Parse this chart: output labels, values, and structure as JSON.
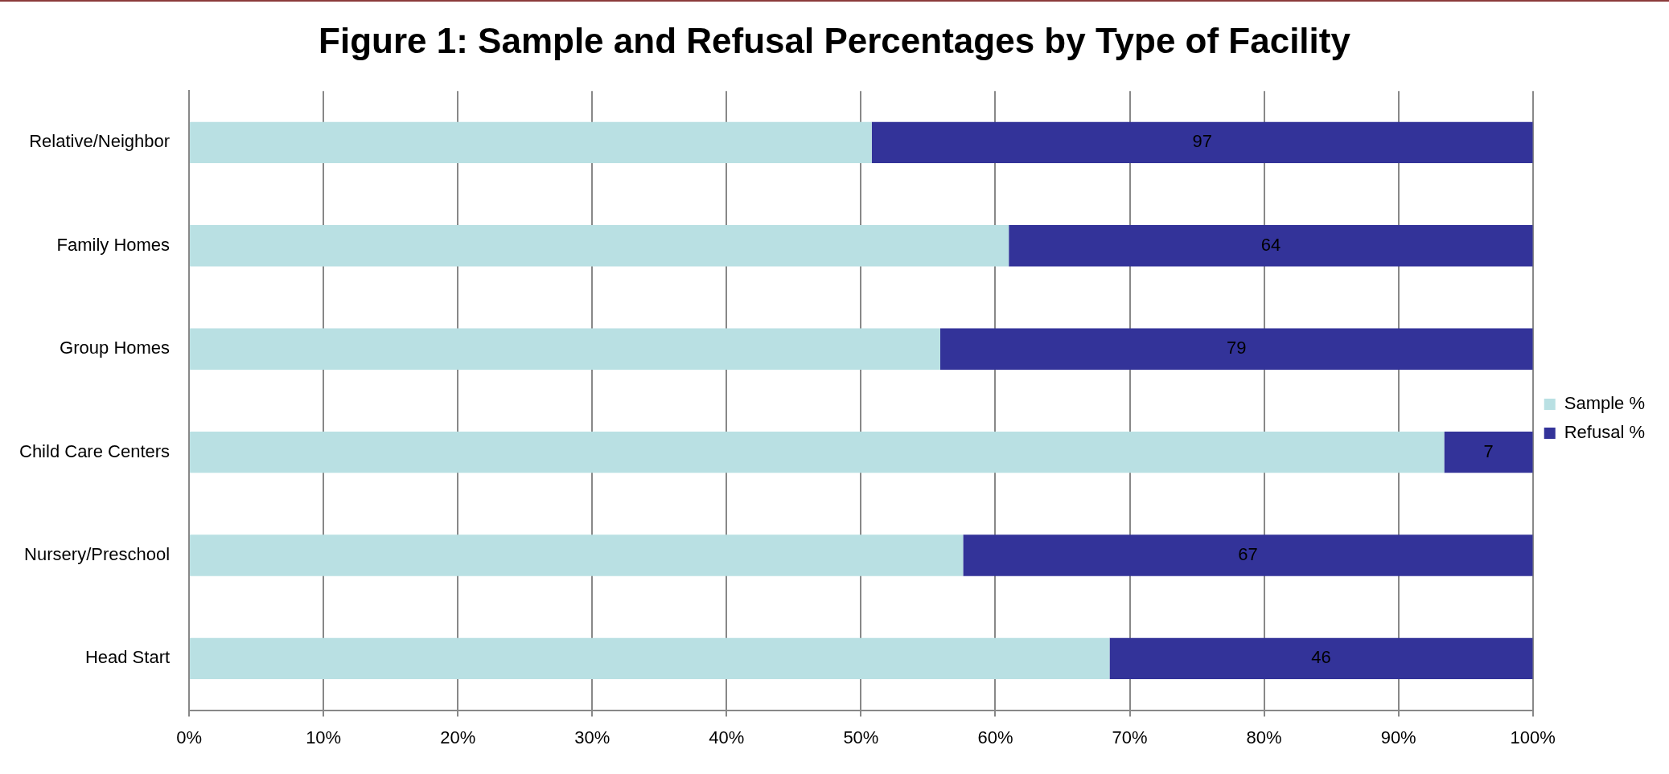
{
  "chart_data": {
    "type": "bar",
    "title": "Figure 1: Sample and Refusal Percentages by Type of Facility",
    "orientation": "horizontal",
    "stacked": true,
    "categories": [
      "Relative/Neighbor",
      "Family Homes",
      "Group Homes",
      "Child Care Centers",
      "Nursery/Preschool",
      "Head Start"
    ],
    "series": [
      {
        "name": "Sample %",
        "color": "#b9e0e3",
        "values": [
          50.8,
          61,
          55.9,
          93.4,
          57.6,
          68.5
        ]
      },
      {
        "name": "Refusal %",
        "color": "#333399",
        "values": [
          49.2,
          39,
          44.1,
          6.6,
          42.4,
          31.5
        ]
      }
    ],
    "annotations": [
      "97",
      "64",
      "79",
      "7",
      "67",
      "46"
    ],
    "xlim": [
      0,
      100
    ],
    "xticks": [
      {
        "value": 0,
        "label": "0%"
      },
      {
        "value": 10,
        "label": "10%"
      },
      {
        "value": 20,
        "label": "20%"
      },
      {
        "value": 30,
        "label": "30%"
      },
      {
        "value": 40,
        "label": "40%"
      },
      {
        "value": 50,
        "label": "50%"
      },
      {
        "value": 60,
        "label": "60%"
      },
      {
        "value": 70,
        "label": "70%"
      },
      {
        "value": 80,
        "label": "80%"
      },
      {
        "value": 90,
        "label": "90%"
      },
      {
        "value": 100,
        "label": "100%"
      }
    ],
    "grid": "x",
    "legend": "right"
  }
}
